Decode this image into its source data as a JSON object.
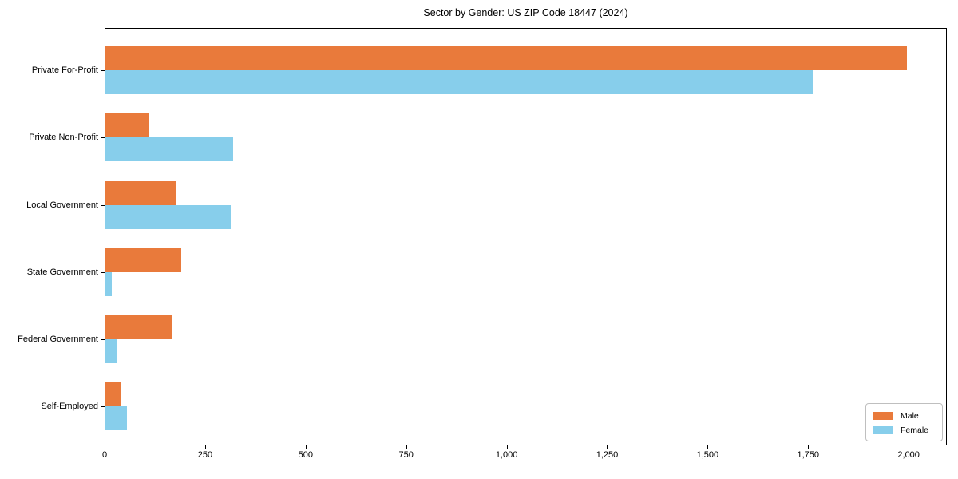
{
  "title": "Sector by Gender: US ZIP Code 18447 (2024)",
  "chart_data": {
    "type": "bar",
    "orientation": "horizontal",
    "title": "Sector by Gender: US ZIP Code 18447 (2024)",
    "xlabel": "",
    "ylabel": "",
    "categories": [
      "Private For-Profit",
      "Private Non-Profit",
      "Local Government",
      "State Government",
      "Federal Government",
      "Self-Employed"
    ],
    "series": [
      {
        "name": "Male",
        "color": "#e97a3b",
        "values": [
          1995,
          112,
          177,
          190,
          169,
          41
        ]
      },
      {
        "name": "Female",
        "color": "#87ceeb",
        "values": [
          1762,
          319,
          313,
          18,
          30,
          56
        ]
      }
    ],
    "xlim": [
      0,
      2095
    ],
    "xticks": [
      0,
      250,
      500,
      750,
      1000,
      1250,
      1500,
      1750,
      2000
    ],
    "xtick_labels": [
      "0",
      "250",
      "500",
      "750",
      "1,000",
      "1,250",
      "1,500",
      "1,750",
      "2,000"
    ],
    "grid": false,
    "legend": {
      "position": "lower right",
      "entries": [
        "Male",
        "Female"
      ]
    }
  },
  "colors": {
    "male": "#e97a3b",
    "female": "#87ceeb",
    "spine": "#000000",
    "text": "#000000",
    "legend_border": "#bfbfbf",
    "background": "#ffffff"
  }
}
